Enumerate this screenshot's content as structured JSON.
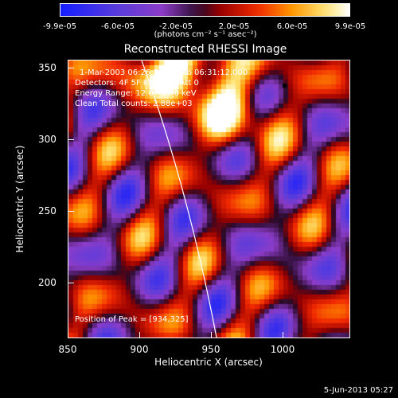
{
  "colorbar": {
    "ticks": [
      "-9.9e-05",
      "-6.0e-05",
      "-2.0e-05",
      "2.0e-05",
      "6.0e-05",
      "9.9e-05"
    ],
    "units": "(photons cm⁻² s⁻¹ asec⁻²)"
  },
  "title": "Reconstructed RHESSI Image",
  "annotations": {
    "time": "1-Mar-2003 06:26:28.000 to 06:31:12.000",
    "detectors": "Detectors: 4F 5F 6F 7F 8F  Att 0",
    "energy": "Energy Range: 12.0 - 25.0 keV",
    "clean": "Clean    Total counts: 2.88e+03",
    "peak": "Position of Peak = [934,325]"
  },
  "axes": {
    "xlabel": "Heliocentric X (arcsec)",
    "ylabel": "Heliocentric Y (arcsec)",
    "xticks": [
      "850",
      "900",
      "950",
      "1000"
    ],
    "yticks": [
      "350",
      "300",
      "250",
      "200"
    ]
  },
  "footer": "5-Jun-2013 05:27"
}
